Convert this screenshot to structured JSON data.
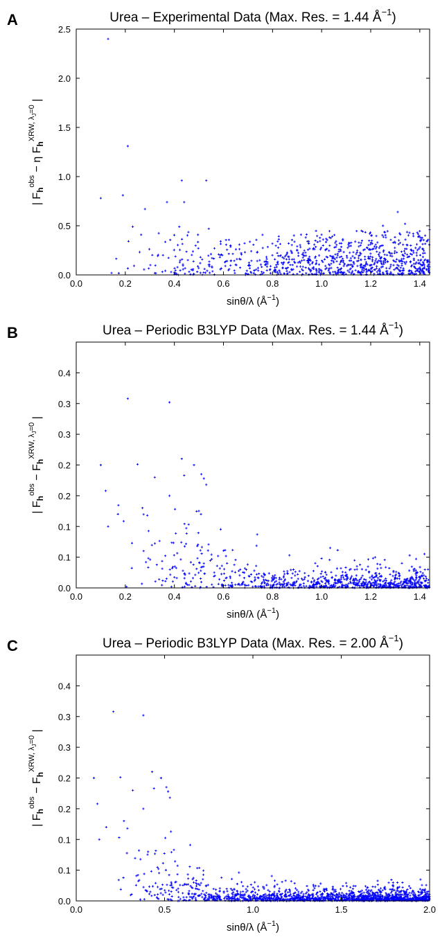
{
  "chart_data": [
    {
      "panel_label": "A",
      "type": "scatter",
      "title": "Urea – Experimental Data (Max. Res. = 1.44 Å",
      "title_sup": "−1",
      "title_tail": ")",
      "xlabel": "sinθ/λ (Å",
      "xlabel_sup": "−1",
      "xlabel_tail": ")",
      "ylabel": "| F_h^obs − η F_h^XRW, λJ=0 |",
      "xlim": [
        0,
        1.44
      ],
      "ylim": [
        0,
        2.5
      ],
      "xticks": [
        "0.0",
        "0.2",
        "0.4",
        "0.6",
        "0.8",
        "1.0",
        "1.2",
        "1.4"
      ],
      "xtick_values": [
        0,
        0.2,
        0.4,
        0.6,
        0.8,
        1.0,
        1.2,
        1.4
      ],
      "yticks": [
        "0.0",
        "0.5",
        "1.0",
        "1.5",
        "2.0",
        "2.5"
      ],
      "ytick_values": [
        0,
        0.5,
        1.0,
        1.5,
        2.0,
        2.5
      ],
      "color": "#0000ff",
      "grid": false,
      "outliers": [
        [
          0.13,
          2.4
        ],
        [
          0.21,
          1.31
        ],
        [
          0.1,
          0.78
        ],
        [
          0.19,
          0.81
        ],
        [
          0.43,
          0.96
        ],
        [
          0.53,
          0.96
        ],
        [
          0.37,
          0.74
        ],
        [
          0.44,
          0.74
        ],
        [
          0.28,
          0.67
        ],
        [
          1.31,
          0.64
        ],
        [
          1.34,
          0.52
        ],
        [
          0.23,
          0.49
        ],
        [
          0.42,
          0.49
        ],
        [
          0.54,
          0.47
        ],
        [
          1.25,
          0.5
        ],
        [
          1.44,
          0.46
        ]
      ],
      "bulk": {
        "n": 900,
        "x_from": 0.14,
        "x_to": 1.44,
        "profile": "flat",
        "y_scale": 0.2,
        "y_max": 0.45,
        "seed": 11
      }
    },
    {
      "panel_label": "B",
      "type": "scatter",
      "title": "Urea – Periodic B3LYP Data (Max. Res. = 1.44 Å",
      "title_sup": "−1",
      "title_tail": ")",
      "xlabel": "sinθ/λ (Å",
      "xlabel_sup": "−1",
      "xlabel_tail": ")",
      "ylabel": "| F_h^obs − F_h^XRW, λJ=0 |",
      "xlim": [
        0,
        1.44
      ],
      "ylim": [
        0,
        0.4
      ],
      "xticks": [
        "0.0",
        "0.2",
        "0.4",
        "0.6",
        "0.8",
        "1.0",
        "1.2",
        "1.4"
      ],
      "xtick_values": [
        0,
        0.2,
        0.4,
        0.6,
        0.8,
        1.0,
        1.2,
        1.4
      ],
      "yticks": [
        "0.0",
        "0.1",
        "0.1",
        "0.2",
        "0.2",
        "0.3",
        "0.3",
        "0.4"
      ],
      "ytick_values": [
        0,
        0.05,
        0.1,
        0.15,
        0.2,
        0.25,
        0.3,
        0.35
      ],
      "color": "#0000ff",
      "grid": false,
      "outliers": [
        [
          0.21,
          0.308
        ],
        [
          0.38,
          0.302
        ],
        [
          0.43,
          0.21
        ],
        [
          0.1,
          0.2
        ],
        [
          0.25,
          0.201
        ],
        [
          0.48,
          0.2
        ],
        [
          0.44,
          0.183
        ],
        [
          0.32,
          0.18
        ],
        [
          0.51,
          0.185
        ],
        [
          0.52,
          0.178
        ],
        [
          0.53,
          0.168
        ],
        [
          0.12,
          0.158
        ],
        [
          0.38,
          0.15
        ],
        [
          0.13,
          0.1
        ],
        [
          0.17,
          0.12
        ],
        [
          0.27,
          0.13
        ],
        [
          0.29,
          0.118
        ]
      ],
      "bulk": {
        "n": 850,
        "x_from": 0.14,
        "x_to": 1.44,
        "profile": "decay",
        "y_scale": 0.012,
        "hump": 0.07,
        "hump_end": 0.78,
        "y_max": 0.15,
        "seed": 23
      }
    },
    {
      "panel_label": "C",
      "type": "scatter",
      "title": "Urea – Periodic B3LYP Data (Max. Res. = 2.00 Å",
      "title_sup": "−1",
      "title_tail": ")",
      "xlabel": "sinθ/λ (Å",
      "xlabel_sup": "−1",
      "xlabel_tail": ")",
      "ylabel": "| F_h^obs − F_h^XRW, λJ=0 |",
      "xlim": [
        0,
        2.0
      ],
      "ylim": [
        0,
        0.4
      ],
      "xticks": [
        "0.0",
        "0.5",
        "1.0",
        "1.5",
        "2.0"
      ],
      "xtick_values": [
        0,
        0.5,
        1.0,
        1.5,
        2.0
      ],
      "yticks": [
        "0.0",
        "0.1",
        "0.1",
        "0.2",
        "0.2",
        "0.3",
        "0.3",
        "0.4"
      ],
      "ytick_values": [
        0,
        0.05,
        0.1,
        0.15,
        0.2,
        0.25,
        0.3,
        0.35
      ],
      "color": "#0000ff",
      "grid": false,
      "outliers": [
        [
          0.21,
          0.308
        ],
        [
          0.38,
          0.302
        ],
        [
          0.43,
          0.21
        ],
        [
          0.1,
          0.2
        ],
        [
          0.25,
          0.201
        ],
        [
          0.48,
          0.2
        ],
        [
          0.44,
          0.183
        ],
        [
          0.32,
          0.18
        ],
        [
          0.51,
          0.185
        ],
        [
          0.52,
          0.178
        ],
        [
          0.53,
          0.168
        ],
        [
          0.12,
          0.158
        ],
        [
          0.38,
          0.15
        ],
        [
          0.13,
          0.1
        ],
        [
          0.17,
          0.12
        ],
        [
          0.27,
          0.13
        ],
        [
          0.29,
          0.118
        ]
      ],
      "bulk": {
        "n": 1500,
        "x_from": 0.14,
        "x_to": 2.0,
        "profile": "decay",
        "y_scale": 0.008,
        "hump": 0.07,
        "hump_end": 0.78,
        "y_max": 0.15,
        "seed": 37
      }
    }
  ]
}
